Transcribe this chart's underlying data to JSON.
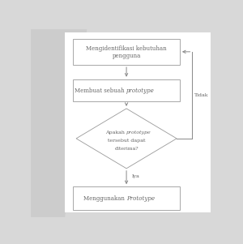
{
  "box_fill": "#ffffff",
  "box_edge": "#999999",
  "text_color": "#666666",
  "arrow_color": "#888888",
  "box1_text_line1": "Mengidentifikasi kebutuhan",
  "box1_text_line2": "pengguna",
  "box2_text_normal": "Membuat sebuah ",
  "box2_text_italic": "prototype",
  "diamond_line1_normal": "Apakah ",
  "diamond_line1_italic": "prototype",
  "diamond_line2": "tersebut dapat",
  "diamond_line3": "diterima?",
  "box3_text_normal": "Menggunakan ",
  "box3_text_italic": "Prototype",
  "label_tidak": "Tidak",
  "label_iya": "Iya",
  "left_shadow_color": "#cccccc",
  "fig_bg": "#d8d8d8",
  "paper_bg": "#ffffff"
}
